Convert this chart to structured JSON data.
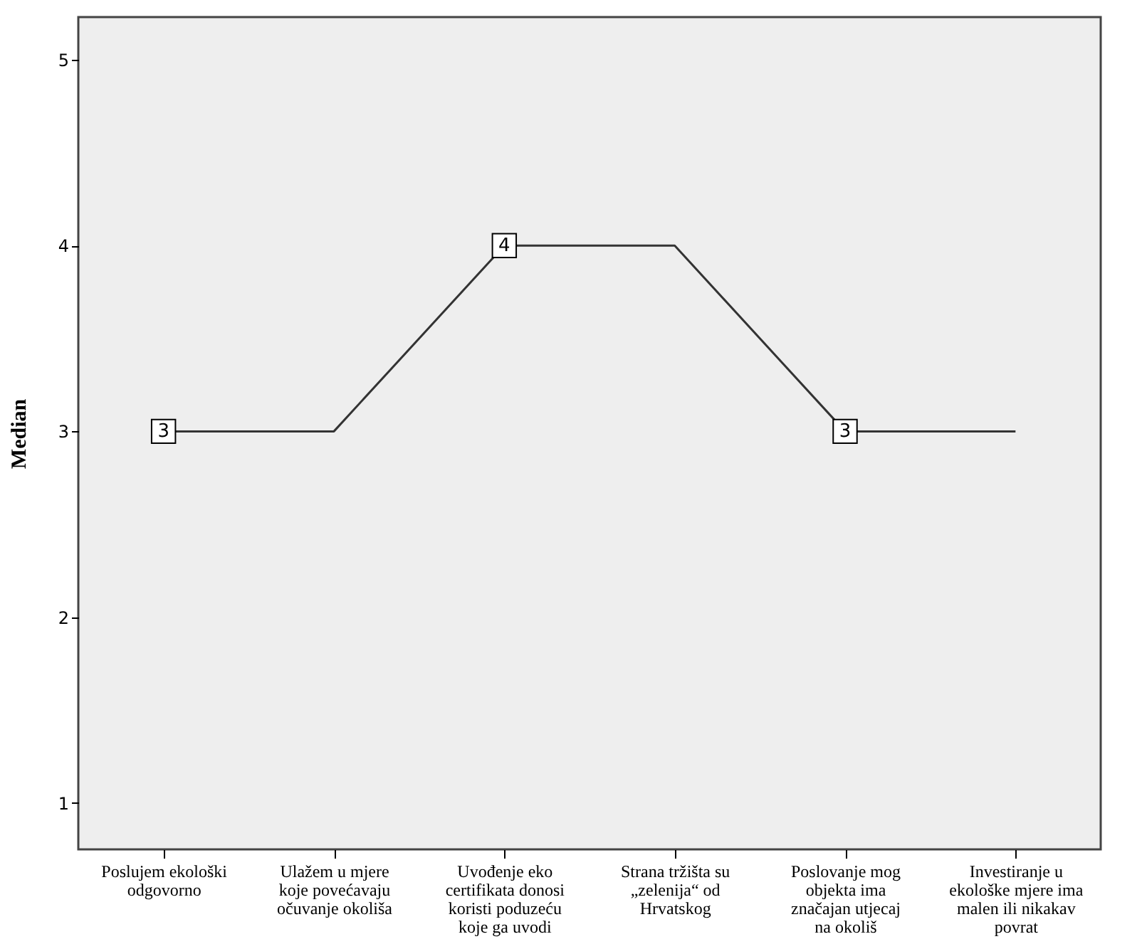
{
  "chart_data": {
    "type": "line",
    "ylabel": "Median",
    "categories": [
      "Poslujem ekološki odgovorno",
      "Ulažem u mjere koje povećavaju očuvanje okoliša",
      "Uvođenje eko certifikata donosi koristi poduzeću koje ga uvodi",
      "Strana tržišta su „zelenija“ od Hrvatskog",
      "Poslovanje mog objekta ima značajan utjecaj na okoliš",
      "Investiranje u ekološke mjere ima malen ili nikakav povrat"
    ],
    "series": [
      {
        "color": "#333333",
        "values": [
          3,
          3,
          4,
          4,
          3,
          3
        ],
        "value_labels": [
          "3",
          null,
          "4",
          null,
          "3",
          null
        ]
      }
    ],
    "ylim": [
      0.75,
      5.23
    ],
    "yticks": [
      1,
      2,
      3,
      4,
      5
    ],
    "grid": false,
    "line_style": "solid"
  }
}
